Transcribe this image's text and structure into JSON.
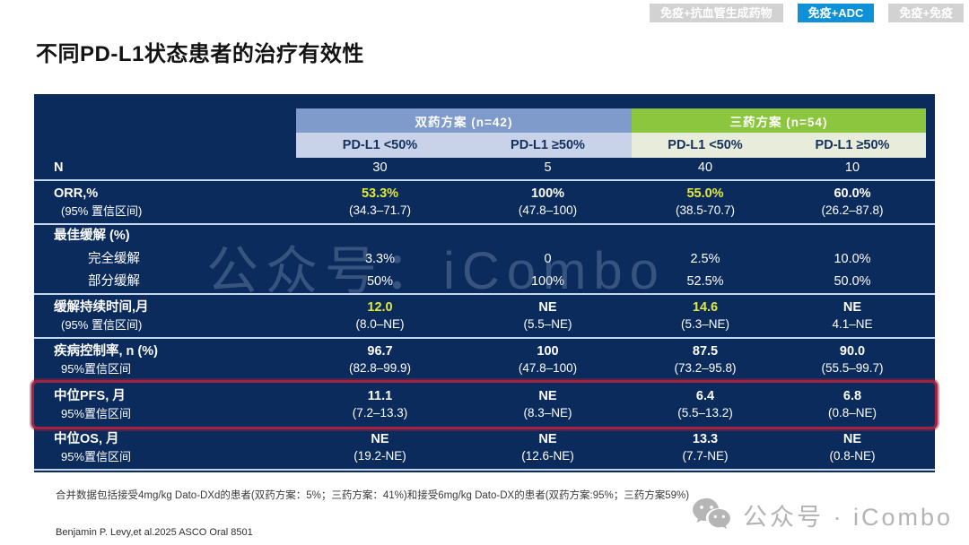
{
  "title": "不同PD-L1状态患者的治疗有效性",
  "tabs": [
    {
      "label": "免疫+抗血管生成药物",
      "active": false
    },
    {
      "label": "免疫+ADC",
      "active": true
    },
    {
      "label": "免疫+免疫",
      "active": false
    }
  ],
  "colors": {
    "tab_active": "#0f91d8",
    "table_bg": "#0b2b5c",
    "dual_header": "#7e9bcc",
    "dual_subheader": "#c8d3e9",
    "triple_header": "#8cc63e",
    "triple_subheader": "#e7edda",
    "highlight_yellow": "#e2e93a",
    "pfs_box": "#9e2442"
  },
  "table": {
    "group_headers": [
      {
        "label": "双药方案 (n=42)"
      },
      {
        "label": "三药方案 (n=54)"
      }
    ],
    "column_headers": [
      "PD-L1 <50%",
      "PD-L1 ≥50%",
      "PD-L1 <50%",
      "PD-L1 ≥50%"
    ],
    "rows": [
      {
        "id": "n",
        "label": "N",
        "cells": [
          "30",
          "5",
          "40",
          "10"
        ],
        "divider": true
      },
      {
        "id": "orr",
        "label": "ORR,%",
        "sublabel": "(95% 置信区间)",
        "cells": [
          {
            "v": "53.3%",
            "s": "(34.3–71.7)",
            "y": true
          },
          {
            "v": "100%",
            "s": "(47.8–100)"
          },
          {
            "v": "55.0%",
            "s": "(38.5-70.7)",
            "y": true
          },
          {
            "v": "60.0%",
            "s": "(26.2–87.8)"
          }
        ],
        "divider": true
      },
      {
        "id": "best-response",
        "label": "最佳缓解 (%)",
        "cells": [
          "",
          "",
          "",
          ""
        ]
      },
      {
        "id": "complete-response",
        "label": "完全缓解",
        "indent": true,
        "cells": [
          "3.3%",
          "0",
          "2.5%",
          "10.0%"
        ]
      },
      {
        "id": "partial-response",
        "label": "部分缓解",
        "indent": true,
        "cells": [
          "50%",
          "100%",
          "52.5%",
          "50.0%"
        ],
        "divider": true
      },
      {
        "id": "dor",
        "label": "缓解持续时间,月",
        "sublabel": "(95% 置信区间)",
        "cells": [
          {
            "v": "12.0",
            "s": "(8.0–NE)",
            "y": true
          },
          {
            "v": "NE",
            "s": "(5.5–NE)"
          },
          {
            "v": "14.6",
            "s": "(5.3–NE)",
            "y": true
          },
          {
            "v": "NE",
            "s": "4.1–NE"
          }
        ],
        "divider": true
      },
      {
        "id": "dcr",
        "label": "疾病控制率, n (%)",
        "sublabel": "95%置信区间",
        "cells": [
          {
            "v": "96.7",
            "s": "(82.8–99.9)"
          },
          {
            "v": "100",
            "s": "(47.8–100)"
          },
          {
            "v": "87.5",
            "s": "(73.2–95.8)"
          },
          {
            "v": "90.0",
            "s": "(55.5–99.7)"
          }
        ],
        "divider": true
      },
      {
        "id": "median-pfs",
        "label": "中位PFS, 月",
        "sublabel": "95%置信区间",
        "boxed": true,
        "cells": [
          {
            "v": "11.1",
            "s": "(7.2–13.3)"
          },
          {
            "v": "NE",
            "s": "(8.3–NE)"
          },
          {
            "v": "6.4",
            "s": "(5.5–13.2)"
          },
          {
            "v": "6.8",
            "s": "(0.8–NE)"
          }
        ]
      },
      {
        "id": "median-os",
        "label": "中位OS, 月",
        "sublabel": "95%置信区间",
        "cells": [
          {
            "v": "NE",
            "s": "(19.2-NE)"
          },
          {
            "v": "NE",
            "s": "(12.6-NE)"
          },
          {
            "v": "13.3",
            "s": "(7.7-NE)"
          },
          {
            "v": "NE",
            "s": "(0.8-NE)"
          }
        ],
        "divider": true
      }
    ]
  },
  "watermarks": {
    "center": "公众号：iCombo",
    "bottom": "公众号 · iCombo"
  },
  "footnote": "合并数据包括接受4mg/kg Dato-DXd的患者(双药方案：5%；三药方案：41%)和接受6mg/kg Dato-DX的患者(双药方案:95%；三药方案59%)",
  "citation": "Benjamin P. Levy,et al.2025 ASCO Oral 8501"
}
